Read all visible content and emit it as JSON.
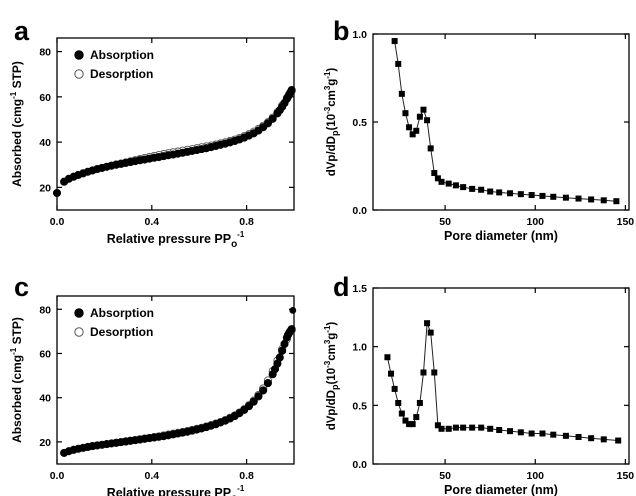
{
  "chart_data": [
    {
      "panel": "a",
      "type": "scatter",
      "xlabel_main": "Relative pressure PP",
      "xlabel_sub": "o",
      "xlabel_sup": "-1",
      "ylabel_main": "Absorbed (cmg",
      "ylabel_sup": "-1",
      "ylabel_tail": " STP)",
      "xlim": [
        0.0,
        1.0
      ],
      "ylim": [
        10,
        86
      ],
      "xticks": [
        0.0,
        0.4,
        0.8
      ],
      "xtick_labels": [
        "0.0",
        "0.4",
        "0.8"
      ],
      "yticks": [
        20,
        40,
        60,
        80
      ],
      "ytick_labels": [
        "20",
        "40",
        "60",
        "80"
      ],
      "grid": false,
      "legend": "upper-left",
      "series": [
        {
          "name": "Absorption",
          "marker": "filled-circle",
          "x": [
            0.0,
            0.03,
            0.05,
            0.07,
            0.09,
            0.11,
            0.13,
            0.15,
            0.17,
            0.19,
            0.21,
            0.23,
            0.25,
            0.27,
            0.29,
            0.31,
            0.33,
            0.35,
            0.37,
            0.39,
            0.41,
            0.43,
            0.45,
            0.47,
            0.49,
            0.51,
            0.53,
            0.55,
            0.57,
            0.59,
            0.61,
            0.63,
            0.65,
            0.67,
            0.69,
            0.71,
            0.73,
            0.75,
            0.77,
            0.79,
            0.81,
            0.83,
            0.85,
            0.87,
            0.89,
            0.91,
            0.93,
            0.94,
            0.95,
            0.96,
            0.97,
            0.975,
            0.98,
            0.985,
            0.99
          ],
          "y": [
            17.5,
            22.5,
            23.8,
            24.7,
            25.5,
            26.2,
            26.9,
            27.5,
            28.1,
            28.6,
            29.1,
            29.6,
            30.0,
            30.4,
            30.8,
            31.2,
            31.6,
            32.0,
            32.3,
            32.7,
            33.1,
            33.4,
            33.8,
            34.2,
            34.5,
            34.9,
            35.3,
            35.7,
            36.1,
            36.5,
            36.9,
            37.3,
            37.8,
            38.3,
            38.8,
            39.3,
            39.9,
            40.5,
            41.2,
            42.0,
            42.9,
            43.9,
            45.1,
            46.6,
            48.3,
            50.3,
            52.7,
            54.1,
            55.6,
            57.3,
            59.1,
            60.1,
            61.1,
            62.0,
            63.0
          ]
        },
        {
          "name": "Desorption",
          "marker": "open-circle",
          "x": [
            0.99,
            0.97,
            0.95,
            0.93,
            0.91,
            0.89,
            0.87,
            0.85,
            0.83,
            0.81,
            0.79,
            0.77,
            0.75,
            0.73,
            0.71,
            0.69,
            0.67,
            0.65,
            0.63,
            0.61,
            0.59,
            0.57,
            0.55,
            0.53,
            0.51,
            0.49,
            0.47,
            0.45,
            0.43,
            0.41,
            0.39,
            0.37,
            0.35,
            0.33,
            0.31,
            0.29,
            0.27,
            0.25
          ],
          "y": [
            62.5,
            59.5,
            56.2,
            53.2,
            50.8,
            48.8,
            47.2,
            45.8,
            44.6,
            43.5,
            42.6,
            41.8,
            41.1,
            40.5,
            39.9,
            39.4,
            38.9,
            38.5,
            38.1,
            37.7,
            37.3,
            36.9,
            36.6,
            36.2,
            35.8,
            35.5,
            35.1,
            34.7,
            34.3,
            33.9,
            33.4,
            33.0,
            32.5,
            32.0,
            31.5,
            31.0,
            30.5,
            30.1
          ]
        }
      ]
    },
    {
      "panel": "b",
      "type": "line",
      "xlabel": "Pore diameter (nm)",
      "ylabel_main": "dVp/dD",
      "ylabel_sub": "p",
      "ylabel_mid": "(10",
      "ylabel_sup1": "-3",
      "ylabel_cm": "cm",
      "ylabel_sup2": "3",
      "ylabel_g": "g",
      "ylabel_sup3": "-1",
      "ylabel_end": ")",
      "xlim": [
        10,
        152
      ],
      "ylim": [
        0,
        1.0
      ],
      "xticks": [
        50,
        100,
        150
      ],
      "xtick_labels": [
        "50",
        "100",
        "150"
      ],
      "yticks": [
        0.0,
        0.5,
        1.0
      ],
      "ytick_labels": [
        "0.0",
        "0.5",
        "1.0"
      ],
      "grid": false,
      "series": [
        {
          "marker": "filled-square",
          "x": [
            22,
            24,
            26,
            28,
            30,
            32,
            34,
            36,
            38,
            40,
            42,
            44,
            46,
            48,
            52,
            56,
            60,
            65,
            70,
            75,
            80,
            86,
            92,
            98,
            104,
            110,
            117,
            124,
            131,
            138,
            145
          ],
          "y": [
            0.96,
            0.83,
            0.66,
            0.55,
            0.47,
            0.43,
            0.45,
            0.53,
            0.57,
            0.51,
            0.35,
            0.21,
            0.18,
            0.16,
            0.15,
            0.14,
            0.13,
            0.12,
            0.115,
            0.105,
            0.1,
            0.095,
            0.09,
            0.085,
            0.08,
            0.075,
            0.07,
            0.065,
            0.06,
            0.055,
            0.05
          ]
        }
      ]
    },
    {
      "panel": "c",
      "type": "scatter",
      "xlabel_main": "Relative pressure PP",
      "xlabel_sub": "o",
      "xlabel_sup": "-1",
      "ylabel_main": "Absorbed (cmg",
      "ylabel_sup": "-1",
      "ylabel_tail": " STP)",
      "xlim": [
        0.0,
        1.0
      ],
      "ylim": [
        10,
        86
      ],
      "xticks": [
        0.0,
        0.4,
        0.8
      ],
      "xtick_labels": [
        "0.0",
        "0.4",
        "0.8"
      ],
      "yticks": [
        20,
        40,
        60,
        80
      ],
      "ytick_labels": [
        "20",
        "40",
        "60",
        "80"
      ],
      "grid": false,
      "legend": "upper-left",
      "series": [
        {
          "name": "Absorption",
          "marker": "filled-circle",
          "x": [
            0.03,
            0.05,
            0.07,
            0.09,
            0.11,
            0.13,
            0.15,
            0.17,
            0.19,
            0.21,
            0.23,
            0.25,
            0.27,
            0.29,
            0.31,
            0.33,
            0.35,
            0.37,
            0.39,
            0.41,
            0.43,
            0.45,
            0.47,
            0.49,
            0.51,
            0.53,
            0.55,
            0.57,
            0.59,
            0.61,
            0.63,
            0.65,
            0.67,
            0.69,
            0.71,
            0.73,
            0.75,
            0.77,
            0.79,
            0.81,
            0.83,
            0.85,
            0.87,
            0.89,
            0.91,
            0.92,
            0.93,
            0.94,
            0.95,
            0.96,
            0.97,
            0.975,
            0.98,
            0.985,
            0.99
          ],
          "y": [
            15.0,
            15.8,
            16.4,
            16.9,
            17.3,
            17.7,
            18.1,
            18.4,
            18.7,
            19.0,
            19.3,
            19.6,
            19.9,
            20.2,
            20.5,
            20.8,
            21.1,
            21.4,
            21.7,
            22.0,
            22.3,
            22.6,
            23.0,
            23.4,
            23.8,
            24.2,
            24.6,
            25.1,
            25.6,
            26.1,
            26.7,
            27.3,
            28.0,
            28.8,
            29.6,
            30.6,
            31.7,
            33.0,
            34.5,
            36.2,
            38.2,
            40.6,
            43.3,
            46.6,
            50.6,
            52.9,
            55.4,
            58.2,
            61.2,
            64.3,
            67.2,
            68.4,
            69.4,
            70.2,
            71.0
          ]
        },
        {
          "name": "Desorption",
          "marker": "open-circle",
          "x": [
            0.99,
            0.97,
            0.95,
            0.93,
            0.91,
            0.89,
            0.87,
            0.85,
            0.83,
            0.81,
            0.79,
            0.77,
            0.75,
            0.73,
            0.71,
            0.69,
            0.67,
            0.65,
            0.63,
            0.61,
            0.59,
            0.57,
            0.55,
            0.53,
            0.51,
            0.49,
            0.47,
            0.45,
            0.43,
            0.41,
            0.39,
            0.37,
            0.35,
            0.33,
            0.31,
            0.29,
            0.27,
            0.25
          ],
          "y": [
            70.5,
            66.5,
            62.0,
            56.8,
            52.0,
            47.8,
            44.2,
            41.2,
            38.7,
            36.6,
            34.8,
            33.3,
            32.0,
            30.9,
            29.9,
            29.0,
            28.3,
            27.6,
            27.0,
            26.4,
            25.9,
            25.4,
            24.9,
            24.5,
            24.1,
            23.7,
            23.3,
            22.9,
            22.5,
            22.2,
            21.8,
            21.5,
            21.1,
            20.8,
            20.5,
            20.2,
            19.9,
            19.6
          ]
        }
      ],
      "extra_points": [
        {
          "x": 0.995,
          "y": 79.5
        }
      ]
    },
    {
      "panel": "d",
      "type": "line",
      "xlabel": "Pore diameter (nm)",
      "ylabel_main": "dVp/dD",
      "ylabel_sub": "p",
      "ylabel_mid": "(10",
      "ylabel_sup1": "-3",
      "ylabel_cm": "cm",
      "ylabel_sup2": "3",
      "ylabel_g": "g",
      "ylabel_sup3": "-1",
      "ylabel_end": ")",
      "xlim": [
        10,
        152
      ],
      "ylim": [
        0,
        1.5
      ],
      "xticks": [
        50,
        100,
        150
      ],
      "xtick_labels": [
        "50",
        "100",
        "150"
      ],
      "yticks": [
        0.0,
        0.5,
        1.0,
        1.5
      ],
      "ytick_labels": [
        "0.0",
        "0.5",
        "1.0",
        "1.5"
      ],
      "grid": false,
      "series": [
        {
          "marker": "filled-square",
          "x": [
            18,
            20,
            22,
            24,
            26,
            28,
            30,
            32,
            34,
            36,
            38,
            40,
            42,
            44,
            46,
            48,
            52,
            56,
            60,
            65,
            70,
            75,
            80,
            86,
            92,
            98,
            104,
            110,
            117,
            124,
            131,
            138,
            146
          ],
          "y": [
            0.91,
            0.77,
            0.64,
            0.52,
            0.43,
            0.37,
            0.34,
            0.34,
            0.4,
            0.52,
            0.78,
            1.2,
            1.12,
            0.78,
            0.33,
            0.3,
            0.3,
            0.31,
            0.31,
            0.31,
            0.31,
            0.3,
            0.29,
            0.28,
            0.27,
            0.26,
            0.26,
            0.25,
            0.24,
            0.23,
            0.22,
            0.21,
            0.2
          ]
        }
      ]
    }
  ],
  "panel_labels": [
    "a",
    "b",
    "c",
    "d"
  ]
}
